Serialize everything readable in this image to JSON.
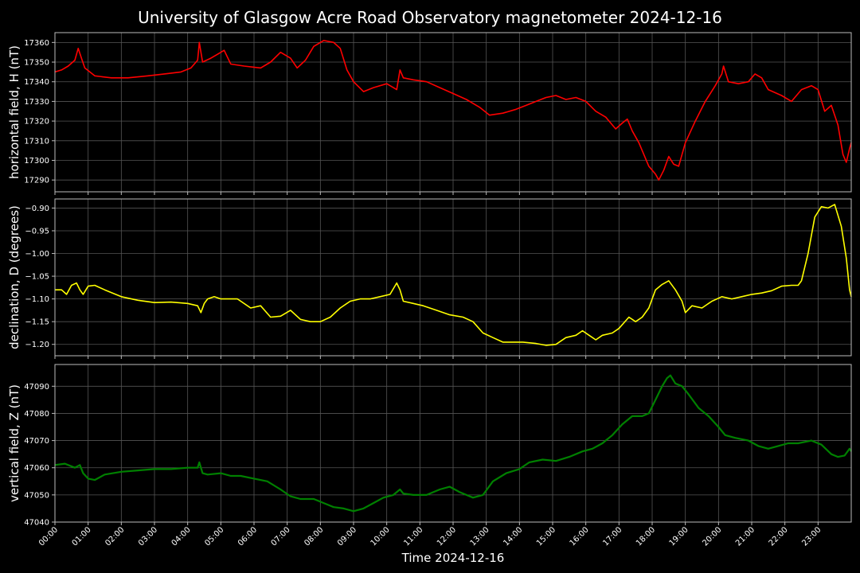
{
  "chart_data": {
    "type": "line",
    "title": "University of Glasgow Acre Road Observatory magnetometer 2024-12-16",
    "xlabel": "Time 2024-12-16",
    "background": "#000000",
    "grid": true,
    "grid_color": "#555555",
    "axis_color": "#bbbbbb",
    "x_ticks": [
      "00:00",
      "01:00",
      "02:00",
      "03:00",
      "04:00",
      "05:00",
      "06:00",
      "07:00",
      "08:00",
      "09:00",
      "10:00",
      "11:00",
      "12:00",
      "13:00",
      "14:00",
      "15:00",
      "16:00",
      "17:00",
      "18:00",
      "19:00",
      "20:00",
      "21:00",
      "22:00",
      "23:00"
    ],
    "xlim_hours": [
      0,
      24
    ],
    "panels": [
      {
        "ylabel": "horizontal field, H (nT)",
        "color": "#ff0000",
        "ylim": [
          17284,
          17365
        ],
        "yticks": [
          17290,
          17300,
          17310,
          17320,
          17330,
          17340,
          17350,
          17360
        ],
        "ytick_labels": [
          "17290",
          "17300",
          "17310",
          "17320",
          "17330",
          "17340",
          "17350",
          "17360"
        ],
        "points": [
          [
            0,
            17345
          ],
          [
            0.2,
            17346
          ],
          [
            0.4,
            17348
          ],
          [
            0.6,
            17351
          ],
          [
            0.7,
            17357
          ],
          [
            0.8,
            17352
          ],
          [
            0.9,
            17347
          ],
          [
            1.2,
            17343
          ],
          [
            1.7,
            17342
          ],
          [
            2.2,
            17342
          ],
          [
            2.8,
            17343
          ],
          [
            3.3,
            17344
          ],
          [
            3.8,
            17345
          ],
          [
            4.1,
            17347
          ],
          [
            4.3,
            17351
          ],
          [
            4.35,
            17360
          ],
          [
            4.45,
            17350
          ],
          [
            4.7,
            17352
          ],
          [
            4.9,
            17354
          ],
          [
            5.1,
            17356
          ],
          [
            5.3,
            17349
          ],
          [
            5.7,
            17348
          ],
          [
            6.2,
            17347
          ],
          [
            6.5,
            17350
          ],
          [
            6.8,
            17355
          ],
          [
            7.1,
            17352
          ],
          [
            7.3,
            17347
          ],
          [
            7.55,
            17351
          ],
          [
            7.8,
            17358
          ],
          [
            8.1,
            17361
          ],
          [
            8.4,
            17360
          ],
          [
            8.6,
            17357
          ],
          [
            8.8,
            17346
          ],
          [
            9.0,
            17340
          ],
          [
            9.3,
            17335
          ],
          [
            9.6,
            17337
          ],
          [
            10.0,
            17339
          ],
          [
            10.3,
            17336
          ],
          [
            10.4,
            17346
          ],
          [
            10.5,
            17342
          ],
          [
            10.8,
            17341
          ],
          [
            11.2,
            17340
          ],
          [
            11.6,
            17337
          ],
          [
            12.0,
            17334
          ],
          [
            12.4,
            17331
          ],
          [
            12.8,
            17327
          ],
          [
            13.1,
            17323
          ],
          [
            13.5,
            17324
          ],
          [
            13.9,
            17326
          ],
          [
            14.2,
            17328
          ],
          [
            14.5,
            17330
          ],
          [
            14.8,
            17332
          ],
          [
            15.1,
            17333
          ],
          [
            15.4,
            17331
          ],
          [
            15.7,
            17332
          ],
          [
            16.0,
            17330
          ],
          [
            16.3,
            17325
          ],
          [
            16.6,
            17322
          ],
          [
            16.9,
            17316
          ],
          [
            17.1,
            17319
          ],
          [
            17.25,
            17321
          ],
          [
            17.4,
            17315
          ],
          [
            17.6,
            17309
          ],
          [
            17.9,
            17297
          ],
          [
            18.1,
            17293
          ],
          [
            18.2,
            17290
          ],
          [
            18.35,
            17295
          ],
          [
            18.5,
            17302
          ],
          [
            18.65,
            17298
          ],
          [
            18.8,
            17297
          ],
          [
            19.0,
            17309
          ],
          [
            19.3,
            17320
          ],
          [
            19.6,
            17330
          ],
          [
            19.9,
            17338
          ],
          [
            20.1,
            17344
          ],
          [
            20.15,
            17348
          ],
          [
            20.3,
            17340
          ],
          [
            20.6,
            17339
          ],
          [
            20.9,
            17340
          ],
          [
            21.1,
            17344
          ],
          [
            21.3,
            17342
          ],
          [
            21.5,
            17336
          ],
          [
            21.9,
            17333
          ],
          [
            22.2,
            17330
          ],
          [
            22.5,
            17336
          ],
          [
            22.8,
            17338
          ],
          [
            23.0,
            17336
          ],
          [
            23.2,
            17325
          ],
          [
            23.4,
            17328
          ],
          [
            23.6,
            17318
          ],
          [
            23.75,
            17303
          ],
          [
            23.85,
            17299
          ],
          [
            23.95,
            17306
          ],
          [
            24,
            17309
          ]
        ]
      },
      {
        "ylabel": "declination, D (degrees)",
        "color": "#ffff00",
        "ylim": [
          -1.225,
          -0.88
        ],
        "yticks": [
          -1.2,
          -1.15,
          -1.1,
          -1.05,
          -1.0,
          -0.95,
          -0.9
        ],
        "ytick_labels": [
          "−1.20",
          "−1.15",
          "−1.10",
          "−1.05",
          "−1.00",
          "−0.95",
          "−0.90"
        ],
        "points": [
          [
            0,
            -1.08
          ],
          [
            0.2,
            -1.08
          ],
          [
            0.35,
            -1.09
          ],
          [
            0.5,
            -1.07
          ],
          [
            0.65,
            -1.065
          ],
          [
            0.75,
            -1.08
          ],
          [
            0.85,
            -1.09
          ],
          [
            1.0,
            -1.072
          ],
          [
            1.2,
            -1.07
          ],
          [
            1.5,
            -1.08
          ],
          [
            2.0,
            -1.095
          ],
          [
            2.5,
            -1.103
          ],
          [
            3.0,
            -1.108
          ],
          [
            3.5,
            -1.107
          ],
          [
            4.0,
            -1.11
          ],
          [
            4.3,
            -1.115
          ],
          [
            4.4,
            -1.13
          ],
          [
            4.5,
            -1.11
          ],
          [
            4.6,
            -1.1
          ],
          [
            4.8,
            -1.095
          ],
          [
            5.0,
            -1.1
          ],
          [
            5.5,
            -1.1
          ],
          [
            5.9,
            -1.12
          ],
          [
            6.2,
            -1.115
          ],
          [
            6.5,
            -1.14
          ],
          [
            6.8,
            -1.138
          ],
          [
            7.1,
            -1.125
          ],
          [
            7.4,
            -1.145
          ],
          [
            7.7,
            -1.15
          ],
          [
            8.0,
            -1.15
          ],
          [
            8.3,
            -1.14
          ],
          [
            8.6,
            -1.12
          ],
          [
            8.9,
            -1.105
          ],
          [
            9.2,
            -1.1
          ],
          [
            9.5,
            -1.1
          ],
          [
            9.8,
            -1.095
          ],
          [
            10.1,
            -1.09
          ],
          [
            10.3,
            -1.065
          ],
          [
            10.4,
            -1.08
          ],
          [
            10.5,
            -1.105
          ],
          [
            10.8,
            -1.11
          ],
          [
            11.1,
            -1.115
          ],
          [
            11.5,
            -1.125
          ],
          [
            11.9,
            -1.135
          ],
          [
            12.3,
            -1.14
          ],
          [
            12.6,
            -1.15
          ],
          [
            12.9,
            -1.175
          ],
          [
            13.2,
            -1.185
          ],
          [
            13.5,
            -1.195
          ],
          [
            13.8,
            -1.195
          ],
          [
            14.1,
            -1.195
          ],
          [
            14.5,
            -1.198
          ],
          [
            14.8,
            -1.202
          ],
          [
            15.1,
            -1.2
          ],
          [
            15.4,
            -1.185
          ],
          [
            15.7,
            -1.18
          ],
          [
            15.9,
            -1.17
          ],
          [
            16.1,
            -1.18
          ],
          [
            16.3,
            -1.19
          ],
          [
            16.5,
            -1.18
          ],
          [
            16.8,
            -1.175
          ],
          [
            17.0,
            -1.165
          ],
          [
            17.3,
            -1.14
          ],
          [
            17.5,
            -1.15
          ],
          [
            17.7,
            -1.14
          ],
          [
            17.9,
            -1.12
          ],
          [
            18.1,
            -1.08
          ],
          [
            18.3,
            -1.068
          ],
          [
            18.5,
            -1.06
          ],
          [
            18.7,
            -1.08
          ],
          [
            18.9,
            -1.105
          ],
          [
            19.0,
            -1.13
          ],
          [
            19.2,
            -1.115
          ],
          [
            19.5,
            -1.12
          ],
          [
            19.8,
            -1.105
          ],
          [
            20.1,
            -1.095
          ],
          [
            20.4,
            -1.1
          ],
          [
            20.7,
            -1.095
          ],
          [
            21.0,
            -1.09
          ],
          [
            21.3,
            -1.087
          ],
          [
            21.6,
            -1.082
          ],
          [
            21.9,
            -1.072
          ],
          [
            22.2,
            -1.07
          ],
          [
            22.4,
            -1.07
          ],
          [
            22.5,
            -1.06
          ],
          [
            22.7,
            -1.0
          ],
          [
            22.9,
            -0.92
          ],
          [
            23.1,
            -0.897
          ],
          [
            23.3,
            -0.9
          ],
          [
            23.5,
            -0.892
          ],
          [
            23.7,
            -0.94
          ],
          [
            23.85,
            -1.01
          ],
          [
            23.95,
            -1.08
          ],
          [
            24,
            -1.095
          ]
        ]
      },
      {
        "ylabel": "vertical field, Z (nT)",
        "color": "#008000",
        "ylim": [
          47040,
          47098
        ],
        "yticks": [
          47040,
          47050,
          47060,
          47070,
          47080,
          47090
        ],
        "ytick_labels": [
          "47040",
          "47050",
          "47060",
          "47070",
          "47080",
          "47090"
        ],
        "points": [
          [
            0,
            47061
          ],
          [
            0.3,
            47061.5
          ],
          [
            0.6,
            47060
          ],
          [
            0.75,
            47061
          ],
          [
            0.85,
            47058
          ],
          [
            1.0,
            47056
          ],
          [
            1.2,
            47055.5
          ],
          [
            1.5,
            47057.5
          ],
          [
            2.0,
            47058.5
          ],
          [
            2.5,
            47059
          ],
          [
            3.0,
            47059.5
          ],
          [
            3.5,
            47059.5
          ],
          [
            4.0,
            47060
          ],
          [
            4.3,
            47060
          ],
          [
            4.35,
            47062
          ],
          [
            4.45,
            47058
          ],
          [
            4.6,
            47057.5
          ],
          [
            5.0,
            47058
          ],
          [
            5.3,
            47057
          ],
          [
            5.6,
            47057
          ],
          [
            6.0,
            47056
          ],
          [
            6.4,
            47055
          ],
          [
            6.8,
            47052
          ],
          [
            7.1,
            47049.5
          ],
          [
            7.4,
            47048.5
          ],
          [
            7.8,
            47048.5
          ],
          [
            8.1,
            47047
          ],
          [
            8.4,
            47045.5
          ],
          [
            8.7,
            47045
          ],
          [
            9.0,
            47044
          ],
          [
            9.3,
            47045
          ],
          [
            9.6,
            47047
          ],
          [
            9.9,
            47049
          ],
          [
            10.2,
            47050
          ],
          [
            10.4,
            47052
          ],
          [
            10.5,
            47050.5
          ],
          [
            10.8,
            47050
          ],
          [
            11.2,
            47050
          ],
          [
            11.6,
            47052
          ],
          [
            11.9,
            47053
          ],
          [
            12.2,
            47051
          ],
          [
            12.6,
            47049
          ],
          [
            12.9,
            47050
          ],
          [
            13.2,
            47055
          ],
          [
            13.6,
            47058
          ],
          [
            14.0,
            47059.5
          ],
          [
            14.3,
            47062
          ],
          [
            14.7,
            47063
          ],
          [
            15.1,
            47062.5
          ],
          [
            15.5,
            47064
          ],
          [
            15.9,
            47066
          ],
          [
            16.2,
            47067
          ],
          [
            16.5,
            47069
          ],
          [
            16.8,
            47072
          ],
          [
            17.1,
            47076
          ],
          [
            17.4,
            47079
          ],
          [
            17.7,
            47079
          ],
          [
            17.9,
            47080
          ],
          [
            18.1,
            47085
          ],
          [
            18.3,
            47090
          ],
          [
            18.45,
            47093
          ],
          [
            18.55,
            47094
          ],
          [
            18.7,
            47091
          ],
          [
            18.9,
            47090
          ],
          [
            19.1,
            47087
          ],
          [
            19.4,
            47082
          ],
          [
            19.7,
            47079
          ],
          [
            20.0,
            47075
          ],
          [
            20.2,
            47072
          ],
          [
            20.5,
            47071
          ],
          [
            20.9,
            47070
          ],
          [
            21.2,
            47068
          ],
          [
            21.5,
            47067
          ],
          [
            21.8,
            47068
          ],
          [
            22.1,
            47069
          ],
          [
            22.4,
            47069
          ],
          [
            22.8,
            47070
          ],
          [
            23.1,
            47068.5
          ],
          [
            23.4,
            47065
          ],
          [
            23.6,
            47064
          ],
          [
            23.8,
            47064.5
          ],
          [
            23.95,
            47067
          ],
          [
            24,
            47066
          ]
        ]
      }
    ]
  }
}
